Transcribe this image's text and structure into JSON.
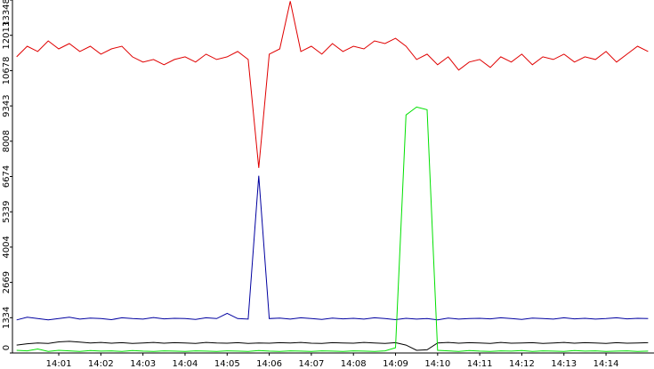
{
  "chart_data": {
    "type": "line",
    "x": [
      840,
      840.25,
      840.5,
      840.75,
      841,
      841.25,
      841.5,
      841.75,
      842,
      842.25,
      842.5,
      842.75,
      843,
      843.25,
      843.5,
      843.75,
      844,
      844.25,
      844.5,
      844.75,
      845,
      845.25,
      845.5,
      845.75,
      846,
      846.25,
      846.5,
      846.75,
      847,
      847.25,
      847.5,
      847.75,
      848,
      848.25,
      848.5,
      848.75,
      849,
      849.25,
      849.5,
      849.75,
      850,
      850.25,
      850.5,
      850.75,
      851,
      851.25,
      851.5,
      851.75,
      852,
      852.25,
      852.5,
      852.75,
      853,
      853.25,
      853.5,
      853.75,
      854,
      854.25,
      854.5,
      854.75,
      855
    ],
    "series": [
      {
        "color": "#e00000",
        "values": [
          11200,
          11600,
          11400,
          11800,
          11500,
          11700,
          11400,
          11600,
          11300,
          11500,
          11600,
          11200,
          11000,
          11100,
          10900,
          11100,
          11200,
          11000,
          11300,
          11100,
          11200,
          11400,
          11100,
          7000,
          11300,
          11500,
          13300,
          11400,
          11600,
          11300,
          11700,
          11400,
          11600,
          11500,
          11800,
          11700,
          11900,
          11600,
          11100,
          11300,
          10900,
          11200,
          10700,
          11000,
          11100,
          10800,
          11200,
          11000,
          11300,
          10900,
          11200,
          11100,
          11300,
          11000,
          11200,
          11100,
          11400,
          11000,
          11300,
          11600,
          11400
        ]
      },
      {
        "color": "#0000a0",
        "values": [
          1250,
          1350,
          1300,
          1250,
          1300,
          1350,
          1280,
          1320,
          1300,
          1260,
          1330,
          1300,
          1280,
          1340,
          1290,
          1310,
          1300,
          1270,
          1330,
          1300,
          1500,
          1300,
          1280,
          6700,
          1300,
          1320,
          1280,
          1330,
          1300,
          1270,
          1320,
          1290,
          1310,
          1280,
          1330,
          1300,
          1260,
          1310,
          1280,
          1300,
          1250,
          1320,
          1280,
          1300,
          1310,
          1290,
          1330,
          1300,
          1270,
          1320,
          1300,
          1280,
          1330,
          1290,
          1310,
          1280,
          1300,
          1330,
          1290,
          1310,
          1300
        ]
      },
      {
        "color": "#000000",
        "values": [
          300,
          350,
          380,
          360,
          420,
          440,
          410,
          380,
          400,
          370,
          390,
          360,
          380,
          400,
          370,
          390,
          380,
          360,
          400,
          380,
          370,
          390,
          360,
          380,
          370,
          390,
          380,
          400,
          370,
          360,
          390,
          380,
          370,
          400,
          380,
          360,
          390,
          300,
          100,
          120,
          380,
          400,
          370,
          390,
          380,
          360,
          400,
          370,
          380,
          390,
          360,
          380,
          400,
          370,
          390,
          380,
          360,
          390,
          370,
          380,
          390
        ]
      },
      {
        "color": "#00e000",
        "values": [
          100,
          80,
          150,
          60,
          100,
          80,
          60,
          90,
          70,
          80,
          60,
          90,
          70,
          60,
          80,
          70,
          60,
          80,
          70,
          60,
          80,
          70,
          60,
          90,
          70,
          60,
          80,
          70,
          60,
          80,
          70,
          60,
          80,
          70,
          60,
          80,
          200,
          9000,
          9300,
          9200,
          100,
          80,
          60,
          90,
          70,
          60,
          80,
          70,
          90,
          60,
          80,
          70,
          60,
          90,
          70,
          80,
          60,
          70,
          80,
          60,
          70
        ]
      }
    ],
    "xlim": [
      839.9,
      855.14
    ],
    "ylim": [
      0,
      13348
    ],
    "xticks": [
      {
        "value": 841,
        "label": "14:01"
      },
      {
        "value": 842,
        "label": "14:02"
      },
      {
        "value": 843,
        "label": "14:03"
      },
      {
        "value": 844,
        "label": "14:04"
      },
      {
        "value": 845,
        "label": "14:05"
      },
      {
        "value": 846,
        "label": "14:06"
      },
      {
        "value": 847,
        "label": "14:07"
      },
      {
        "value": 848,
        "label": "14:08"
      },
      {
        "value": 849,
        "label": "14:09"
      },
      {
        "value": 850,
        "label": "14:10"
      },
      {
        "value": 851,
        "label": "14:11"
      },
      {
        "value": 852,
        "label": "14:12"
      },
      {
        "value": 853,
        "label": "14:13"
      },
      {
        "value": 854,
        "label": "14:14"
      }
    ],
    "yticks": [
      0,
      1334,
      2669,
      4004,
      5339,
      6674,
      8008,
      9343,
      10678,
      12013,
      13348
    ]
  }
}
